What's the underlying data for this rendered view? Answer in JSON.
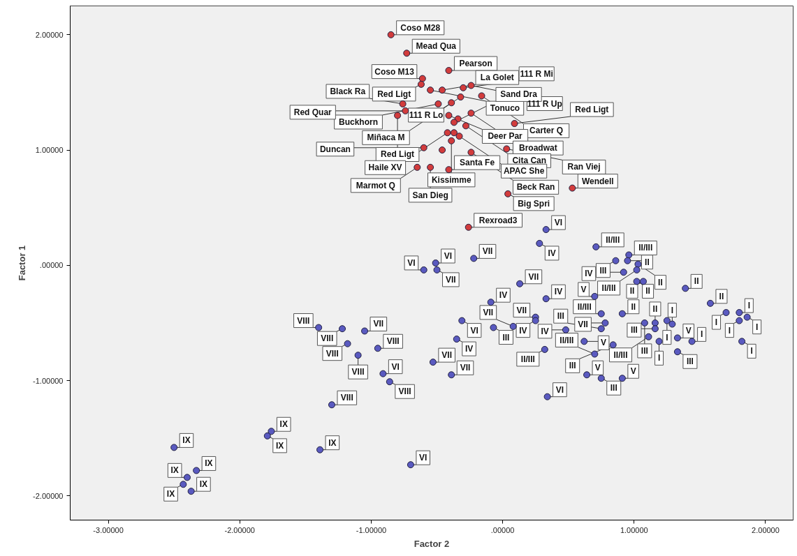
{
  "chart_data": {
    "type": "scatter",
    "xlabel": "Factor 2",
    "ylabel": "Factor 1",
    "xlim": [
      -3.29,
      2.21
    ],
    "ylim": [
      -2.21,
      2.25
    ],
    "xticks": [
      {
        "value": -3,
        "label": "-3.00000"
      },
      {
        "value": -2,
        "label": "-2.00000"
      },
      {
        "value": -1,
        "label": "-1.00000"
      },
      {
        "value": 0,
        "label": ".00000"
      },
      {
        "value": 1,
        "label": "1.00000"
      },
      {
        "value": 2,
        "label": "2.00000"
      }
    ],
    "yticks": [
      {
        "value": -2,
        "label": "-2.00000"
      },
      {
        "value": -1,
        "label": "-1.00000"
      },
      {
        "value": 0,
        "label": ".00000"
      },
      {
        "value": 1,
        "label": "1.00000"
      },
      {
        "value": 2,
        "label": "2.00000"
      }
    ],
    "grid": false,
    "marker": "circle",
    "series": [
      {
        "color": "#d23c3c",
        "x": [
          -0.85,
          -0.73,
          -0.41,
          -0.61,
          -0.62,
          -0.55,
          -0.46,
          -0.3,
          -0.24,
          -0.32,
          -0.16,
          -0.49,
          -0.39,
          -0.76,
          -0.74,
          -0.8,
          -0.41,
          -0.24,
          -0.34,
          -0.37,
          -0.28,
          0.09,
          -0.42,
          -0.37,
          -0.33,
          -0.39,
          -0.6,
          -0.46,
          -0.24,
          0.03,
          -0.65,
          -0.55,
          -0.41,
          0.04,
          0.53,
          -0.26
        ],
        "values": [
          2.0,
          1.84,
          1.69,
          1.62,
          1.57,
          1.52,
          1.52,
          1.54,
          1.56,
          1.46,
          1.47,
          1.4,
          1.41,
          1.4,
          1.34,
          1.3,
          1.3,
          1.32,
          1.27,
          1.24,
          1.21,
          1.23,
          1.15,
          1.15,
          1.12,
          1.08,
          1.02,
          1.0,
          0.98,
          1.01,
          0.85,
          0.85,
          0.83,
          0.62,
          0.67,
          0.33
        ]
      },
      {
        "color": "#5a5ac0",
        "x": [
          0.33,
          0.28,
          0.71,
          0.96,
          0.95,
          0.86,
          1.03,
          1.02,
          0.92,
          1.02,
          1.07,
          1.39,
          1.58,
          1.7,
          1.8,
          1.86,
          1.8,
          1.82,
          1.44,
          1.33,
          1.33,
          1.29,
          1.25,
          1.16,
          1.16,
          1.08,
          1.11,
          1.19,
          0.91,
          0.75,
          0.7,
          0.78,
          0.75,
          0.84,
          0.7,
          0.62,
          0.48,
          0.64,
          0.75,
          0.91,
          0.34,
          0.32,
          0.25,
          0.25,
          0.33,
          0.13,
          -0.09,
          -0.07,
          0.08,
          -0.22,
          -0.51,
          -0.5,
          -0.6,
          -0.31,
          -0.35,
          -0.53,
          -0.39,
          -1.4,
          -1.22,
          -1.05,
          -1.18,
          -0.95,
          -1.1,
          -0.91,
          -0.86,
          -1.3,
          -1.79,
          -1.76,
          -1.39,
          -0.7,
          -2.5,
          -2.33,
          -2.4,
          -2.43,
          -2.37
        ],
        "values": [
          0.31,
          0.19,
          0.16,
          0.09,
          0.04,
          0.04,
          0.01,
          -0.04,
          -0.06,
          -0.14,
          -0.14,
          -0.2,
          -0.33,
          -0.41,
          -0.41,
          -0.45,
          -0.48,
          -0.66,
          -0.66,
          -0.75,
          -0.63,
          -0.51,
          -0.48,
          -0.5,
          -0.55,
          -0.5,
          -0.62,
          -0.66,
          -0.42,
          -0.42,
          -0.27,
          -0.5,
          -0.55,
          -0.69,
          -0.77,
          -0.66,
          -0.56,
          -0.95,
          -0.98,
          -0.98,
          -1.14,
          -0.73,
          -0.45,
          -0.48,
          -0.29,
          -0.16,
          -0.32,
          -0.54,
          -0.53,
          0.06,
          0.02,
          -0.04,
          -0.04,
          -0.48,
          -0.64,
          -0.84,
          -0.95,
          -0.54,
          -0.55,
          -0.57,
          -0.68,
          -0.72,
          -0.78,
          -0.94,
          -1.01,
          -1.21,
          -1.48,
          -1.44,
          -1.6,
          -1.73,
          -1.58,
          -1.78,
          -1.84,
          -1.9,
          -1.96
        ]
      }
    ],
    "annotations": [
      {
        "text": "Coso M28",
        "x": -0.85,
        "y": 2.0
      },
      {
        "text": "Mead Qua",
        "x": -0.73,
        "y": 1.84
      },
      {
        "text": "Pearson",
        "x": -0.41,
        "y": 1.69
      },
      {
        "text": "Coso M13",
        "x": -0.61,
        "y": 1.62
      },
      {
        "text": "Red Ligt",
        "x": -0.62,
        "y": 1.57
      },
      {
        "text": "Tonuco",
        "x": -0.55,
        "y": 1.52
      },
      {
        "text": "La Golet",
        "x": -0.46,
        "y": 1.52
      },
      {
        "text": "111 R Mi",
        "x": -0.3,
        "y": 1.54
      },
      {
        "text": "111 R Up",
        "x": -0.24,
        "y": 1.56
      },
      {
        "text": "111 R Lo",
        "x": -0.32,
        "y": 1.46
      },
      {
        "text": "Carter Q",
        "x": -0.16,
        "y": 1.47
      },
      {
        "text": "Buckhorn",
        "x": -0.49,
        "y": 1.4
      },
      {
        "text": "Miñaca M",
        "x": -0.39,
        "y": 1.41
      },
      {
        "text": "Black Ra",
        "x": -0.76,
        "y": 1.4
      },
      {
        "text": "Red Quar",
        "x": -0.74,
        "y": 1.34
      },
      {
        "text": "Red Ligt",
        "x": -0.8,
        "y": 1.3
      },
      {
        "text": "Deer Par",
        "x": -0.41,
        "y": 1.3
      },
      {
        "text": "Broadwat",
        "x": -0.24,
        "y": 1.32
      },
      {
        "text": "Sand Dra",
        "x": -0.37,
        "y": 1.24
      },
      {
        "text": "Cita Can",
        "x": -0.28,
        "y": 1.21
      },
      {
        "text": "Red Ligt",
        "x": 0.09,
        "y": 1.23
      },
      {
        "text": "Haile XV",
        "x": -0.42,
        "y": 1.15
      },
      {
        "text": "APAC She",
        "x": -0.33,
        "y": 1.12
      },
      {
        "text": "Kissimme",
        "x": -0.39,
        "y": 1.08
      },
      {
        "text": "Duncan",
        "x": -0.6,
        "y": 1.02
      },
      {
        "text": "Beck Ran",
        "x": -0.24,
        "y": 0.98
      },
      {
        "text": "Ran Viej",
        "x": 0.03,
        "y": 1.01
      },
      {
        "text": "Marmot Q",
        "x": -0.65,
        "y": 0.85
      },
      {
        "text": "San Dieg",
        "x": -0.55,
        "y": 0.85
      },
      {
        "text": "Santa Fe",
        "x": -0.41,
        "y": 0.83
      },
      {
        "text": "Big Spri",
        "x": 0.04,
        "y": 0.62
      },
      {
        "text": "Wendell",
        "x": 0.53,
        "y": 0.67
      },
      {
        "text": "Rexroad3",
        "x": -0.26,
        "y": 0.33
      },
      {
        "text": "VI",
        "x": 0.33,
        "y": 0.31
      },
      {
        "text": "IV",
        "x": 0.28,
        "y": 0.19
      },
      {
        "text": "II/III",
        "x": 0.71,
        "y": 0.16
      },
      {
        "text": "II/III",
        "x": 0.96,
        "y": 0.09
      },
      {
        "text": "II",
        "x": 0.95,
        "y": 0.04
      },
      {
        "text": "III",
        "x": 0.86,
        "y": 0.04
      },
      {
        "text": "II",
        "x": 1.03,
        "y": 0.01
      },
      {
        "text": "II/III",
        "x": 1.02,
        "y": -0.04
      },
      {
        "text": "IV",
        "x": 0.92,
        "y": -0.06
      },
      {
        "text": "II",
        "x": 1.02,
        "y": -0.14
      },
      {
        "text": "II",
        "x": 1.07,
        "y": -0.14
      },
      {
        "text": "II",
        "x": 1.39,
        "y": -0.2
      },
      {
        "text": "II",
        "x": 1.58,
        "y": -0.33
      },
      {
        "text": "I",
        "x": 1.7,
        "y": -0.41
      },
      {
        "text": "I",
        "x": 1.8,
        "y": -0.41
      },
      {
        "text": "I",
        "x": 1.86,
        "y": -0.45
      },
      {
        "text": "I",
        "x": 1.8,
        "y": -0.48
      },
      {
        "text": "I",
        "x": 1.82,
        "y": -0.66
      },
      {
        "text": "I",
        "x": 1.44,
        "y": -0.66
      },
      {
        "text": "III",
        "x": 1.33,
        "y": -0.75
      },
      {
        "text": "V",
        "x": 1.33,
        "y": -0.63
      },
      {
        "text": "I",
        "x": 1.29,
        "y": -0.51
      },
      {
        "text": "I",
        "x": 1.25,
        "y": -0.48
      },
      {
        "text": "II",
        "x": 1.16,
        "y": -0.5
      },
      {
        "text": "III",
        "x": 1.16,
        "y": -0.55
      },
      {
        "text": "III",
        "x": 1.08,
        "y": -0.5
      },
      {
        "text": "II/III",
        "x": 1.11,
        "y": -0.62
      },
      {
        "text": "I",
        "x": 1.19,
        "y": -0.66
      },
      {
        "text": "II",
        "x": 0.91,
        "y": -0.42
      },
      {
        "text": "II/III",
        "x": 0.75,
        "y": -0.42
      },
      {
        "text": "V",
        "x": 0.7,
        "y": -0.27
      },
      {
        "text": "VII",
        "x": 0.78,
        "y": -0.5
      },
      {
        "text": "III",
        "x": 0.75,
        "y": -0.55
      },
      {
        "text": "III",
        "x": 0.84,
        "y": -0.69
      },
      {
        "text": "II/III",
        "x": 0.7,
        "y": -0.77
      },
      {
        "text": "V",
        "x": 0.62,
        "y": -0.66
      },
      {
        "text": "IV",
        "x": 0.48,
        "y": -0.56
      },
      {
        "text": "V",
        "x": 0.64,
        "y": -0.95
      },
      {
        "text": "III",
        "x": 0.75,
        "y": -0.98
      },
      {
        "text": "V",
        "x": 0.91,
        "y": -0.98
      },
      {
        "text": "VI",
        "x": 0.34,
        "y": -1.14
      },
      {
        "text": "II/III",
        "x": 0.32,
        "y": -0.73
      },
      {
        "text": "VII",
        "x": 0.25,
        "y": -0.45
      },
      {
        "text": "IV",
        "x": 0.25,
        "y": -0.48
      },
      {
        "text": "IV",
        "x": 0.33,
        "y": -0.29
      },
      {
        "text": "VII",
        "x": 0.13,
        "y": -0.16
      },
      {
        "text": "IV",
        "x": -0.09,
        "y": -0.32
      },
      {
        "text": "III",
        "x": -0.07,
        "y": -0.54
      },
      {
        "text": "VII",
        "x": 0.08,
        "y": -0.53
      },
      {
        "text": "VII",
        "x": -0.22,
        "y": 0.06
      },
      {
        "text": "VI",
        "x": -0.51,
        "y": 0.02
      },
      {
        "text": "VII",
        "x": -0.5,
        "y": -0.04
      },
      {
        "text": "VI",
        "x": -0.6,
        "y": -0.04
      },
      {
        "text": "VI",
        "x": -0.31,
        "y": -0.48
      },
      {
        "text": "IV",
        "x": -0.35,
        "y": -0.64
      },
      {
        "text": "VII",
        "x": -0.53,
        "y": -0.84
      },
      {
        "text": "VII",
        "x": -0.39,
        "y": -0.95
      },
      {
        "text": "VIII",
        "x": -1.4,
        "y": -0.54
      },
      {
        "text": "VIII",
        "x": -1.22,
        "y": -0.55
      },
      {
        "text": "VII",
        "x": -1.05,
        "y": -0.57
      },
      {
        "text": "VIII",
        "x": -1.18,
        "y": -0.68
      },
      {
        "text": "VIII",
        "x": -0.95,
        "y": -0.72
      },
      {
        "text": "VIII",
        "x": -1.1,
        "y": -0.78
      },
      {
        "text": "VI",
        "x": -0.91,
        "y": -0.94
      },
      {
        "text": "VIII",
        "x": -0.86,
        "y": -1.01
      },
      {
        "text": "VIII",
        "x": -1.3,
        "y": -1.21
      },
      {
        "text": "IX",
        "x": -1.79,
        "y": -1.48
      },
      {
        "text": "IX",
        "x": -1.76,
        "y": -1.44
      },
      {
        "text": "IX",
        "x": -1.39,
        "y": -1.6
      },
      {
        "text": "VI",
        "x": -0.7,
        "y": -1.73
      },
      {
        "text": "IX",
        "x": -2.5,
        "y": -1.58
      },
      {
        "text": "IX",
        "x": -2.33,
        "y": -1.78
      },
      {
        "text": "IX",
        "x": -2.4,
        "y": -1.84
      },
      {
        "text": "IX",
        "x": -2.43,
        "y": -1.9
      },
      {
        "text": "IX",
        "x": -2.37,
        "y": -1.96
      }
    ]
  }
}
